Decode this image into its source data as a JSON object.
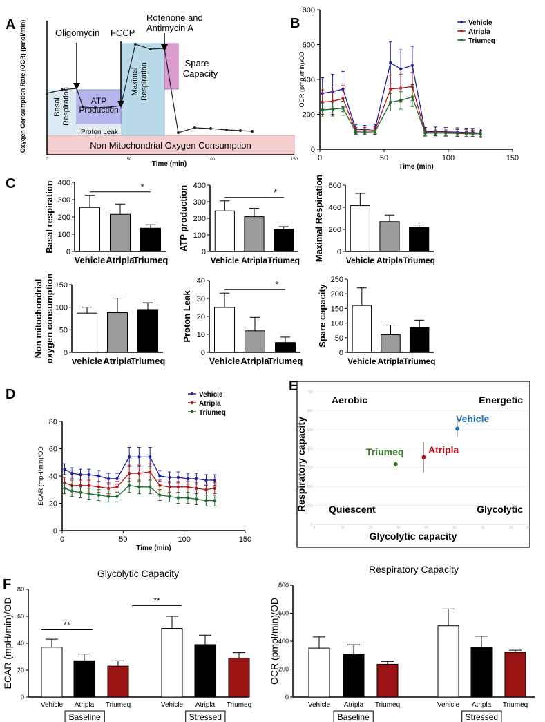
{
  "panel_letters": {
    "a": "A",
    "b": "B",
    "c": "C",
    "d": "D",
    "e": "E",
    "f": "F"
  },
  "colors": {
    "vehicle": "#1f1fa0",
    "atripla": "#b01818",
    "triumeq": "#1e6b2e",
    "gray_bar": "#9b9b9b",
    "dark_red_bar": "#9b1414"
  },
  "panel_a": {
    "ylabel": "Oxygen Consumption Rate (OCR) (pmol/min)",
    "xlabel": "Time (min)",
    "x_ticks": [
      "0",
      "50",
      "100",
      "150"
    ],
    "injections": {
      "oligomycin": "Oligomycin",
      "fccp": "FCCP",
      "rotenone_1": "Rotenone and",
      "rotenone_2": "Antimycin A"
    },
    "regions": {
      "basal_1": "Basal",
      "basal_2": "Respiration",
      "atp_1": "ATP",
      "atp_2": "Production",
      "proton": "Proton Leak",
      "max_1": "Maximal",
      "max_2": "Respiration",
      "spare_1": "Spare",
      "spare_2": "Capacity",
      "non_mito": "Non Mitochondrial Oxygen Consumption"
    }
  },
  "chart_data": [
    {
      "id": "B",
      "type": "line",
      "title": "",
      "xlabel": "Time (min)",
      "ylabel": "OCR (pmol/min)/OD",
      "xlim": [
        0,
        150
      ],
      "ylim": [
        0,
        800
      ],
      "xticks": [
        "0",
        "50",
        "100",
        "150"
      ],
      "yticks": [
        "0",
        "200",
        "400",
        "600",
        "800"
      ],
      "x": [
        2,
        10,
        18,
        28,
        35,
        43,
        55,
        63,
        72,
        82,
        90,
        98,
        107,
        114,
        119,
        125
      ],
      "series": [
        {
          "name": "Vehicle",
          "values": [
            320,
            330,
            345,
            115,
            112,
            118,
            495,
            460,
            480,
            100,
            102,
            100,
            98,
            96,
            95,
            92
          ],
          "errors": [
            90,
            100,
            100,
            25,
            25,
            25,
            120,
            110,
            110,
            25,
            25,
            25,
            25,
            25,
            25,
            25
          ]
        },
        {
          "name": "Atripla",
          "values": [
            270,
            275,
            290,
            105,
            105,
            108,
            345,
            350,
            360,
            96,
            96,
            95,
            93,
            92,
            90,
            88
          ],
          "errors": [
            70,
            75,
            75,
            20,
            20,
            20,
            80,
            80,
            80,
            20,
            20,
            20,
            20,
            20,
            20,
            20
          ]
        },
        {
          "name": "Triumeq",
          "values": [
            225,
            230,
            235,
            100,
            98,
            100,
            270,
            280,
            300,
            92,
            92,
            92,
            90,
            88,
            88,
            88
          ],
          "errors": [
            40,
            40,
            40,
            15,
            15,
            15,
            50,
            50,
            55,
            15,
            15,
            15,
            15,
            15,
            15,
            15
          ]
        }
      ],
      "legend": [
        "Vehicle",
        "Atripla",
        "Triumeq"
      ]
    },
    {
      "id": "C1",
      "type": "bar",
      "ylabel": "Basal respiration",
      "categories": [
        "Vehicle",
        "Atripla",
        "Triumeq"
      ],
      "values": [
        255,
        215,
        135
      ],
      "errors": [
        70,
        60,
        20
      ],
      "ylim": [
        0,
        400
      ],
      "yticks": [
        "0",
        "100",
        "200",
        "300",
        "400"
      ],
      "significance": "*"
    },
    {
      "id": "C2",
      "type": "bar",
      "ylabel": "ATP  production",
      "categories": [
        "Vehicle",
        "Atripla",
        "Triumeq"
      ],
      "values": [
        245,
        210,
        135
      ],
      "errors": [
        60,
        50,
        15
      ],
      "ylim": [
        0,
        400
      ],
      "yticks": [
        "0",
        "100",
        "200",
        "300",
        "400"
      ],
      "significance": "*"
    },
    {
      "id": "C3",
      "type": "bar",
      "ylabel": "Maximal Respiration",
      "categories": [
        "Vehicle",
        "Atripla",
        "Triumeq"
      ],
      "values": [
        415,
        270,
        220
      ],
      "errors": [
        110,
        60,
        20
      ],
      "ylim": [
        0,
        600
      ],
      "yticks": [
        "0",
        "200",
        "400",
        "600"
      ],
      "significance": ""
    },
    {
      "id": "C4",
      "type": "bar",
      "ylabel": "Non mitochondrial oxygen consumption",
      "ylabel_lines": [
        "Non mitochondrial",
        "oxygen consumption"
      ],
      "categories": [
        "vehicle",
        "Atripla",
        "Triumeq"
      ],
      "values": [
        87,
        88,
        95
      ],
      "errors": [
        13,
        32,
        15
      ],
      "ylim": [
        0,
        150
      ],
      "yticks": [
        "0",
        "50",
        "100",
        "150"
      ],
      "significance": ""
    },
    {
      "id": "C5",
      "type": "bar",
      "ylabel": "Proton Leak",
      "categories": [
        "Vehicle",
        "Atripla",
        "Triumeq"
      ],
      "values": [
        25,
        12,
        5.5
      ],
      "errors": [
        8,
        7.5,
        3
      ],
      "ylim": [
        0,
        40
      ],
      "yticks": [
        "0",
        "10",
        "20",
        "30",
        "40"
      ],
      "significance": "*"
    },
    {
      "id": "C6",
      "type": "bar",
      "ylabel": "Spare capacity",
      "categories": [
        "Vehicle",
        "Atripla",
        "Triumeq"
      ],
      "values": [
        160,
        60,
        85
      ],
      "errors": [
        60,
        33,
        25
      ],
      "ylim": [
        0,
        250
      ],
      "yticks": [
        "0",
        "50",
        "100",
        "150",
        "200",
        "250"
      ],
      "significance": ""
    },
    {
      "id": "D",
      "type": "line",
      "xlabel": "Time (min)",
      "ylabel": "ECAR (mpH/min)/OD",
      "xlim": [
        0,
        150
      ],
      "ylim": [
        0,
        80
      ],
      "xticks": [
        "0",
        "50",
        "100",
        "150"
      ],
      "yticks": [
        "0",
        "20",
        "40",
        "60",
        "80"
      ],
      "x": [
        2,
        8,
        15,
        22,
        30,
        38,
        45,
        55,
        63,
        72,
        80,
        88,
        95,
        103,
        110,
        118,
        125
      ],
      "series": [
        {
          "name": "Vehicle",
          "values": [
            45,
            42,
            41,
            41,
            40,
            38,
            38,
            54,
            54,
            54,
            40,
            39,
            39,
            38,
            38,
            37,
            37
          ],
          "errors": [
            4,
            4,
            4,
            4,
            4,
            4,
            4,
            7,
            7,
            7,
            4,
            4,
            4,
            4,
            4,
            4,
            4
          ]
        },
        {
          "name": "Atripla",
          "values": [
            35,
            33,
            33,
            33,
            32,
            31,
            32,
            42,
            42,
            43,
            33,
            32,
            32,
            32,
            31,
            30,
            31
          ],
          "errors": [
            4,
            4,
            4,
            4,
            4,
            4,
            4,
            6,
            6,
            6,
            4,
            4,
            4,
            4,
            4,
            4,
            4
          ]
        },
        {
          "name": "Triumeq",
          "values": [
            31,
            29,
            28,
            27,
            26,
            25,
            25,
            33,
            32,
            32,
            26,
            25,
            24,
            24,
            23,
            22,
            22
          ],
          "errors": [
            4,
            4,
            4,
            4,
            4,
            4,
            4,
            5,
            5,
            5,
            4,
            4,
            4,
            4,
            4,
            4,
            4
          ]
        }
      ],
      "legend": [
        "Vehicle",
        "Atripla",
        "Triumeq"
      ]
    },
    {
      "id": "E",
      "type": "scatter",
      "xlabel": "Glycolytic capacity",
      "ylabel": "Respiratory capacity",
      "xlim": [
        0,
        80
      ],
      "ylim": [
        0,
        700
      ],
      "xticks": [
        "0",
        "10",
        "20",
        "30",
        "40",
        "50",
        "60",
        "70",
        "80"
      ],
      "yticks": [
        "0",
        "100",
        "200",
        "300",
        "400",
        "500",
        "600",
        "700"
      ],
      "quadrants": {
        "top_left": "Aerobic",
        "top_right": "Energetic",
        "bottom_left": "Quiescent",
        "bottom_right": "Glycolytic"
      },
      "points": [
        {
          "name": "Vehicle",
          "x": 51,
          "y": 505,
          "yerr": 40
        },
        {
          "name": "Atripla",
          "x": 39,
          "y": 355,
          "yerr": 80
        },
        {
          "name": "Triumeq",
          "x": 29,
          "y": 318,
          "yerr": 15
        }
      ]
    },
    {
      "id": "F1",
      "type": "bar",
      "title": "Glycolytic Capacity",
      "ylabel": "ECAR (mpH/min)/OD",
      "ylim": [
        0,
        80
      ],
      "yticks": [
        "0",
        "20",
        "40",
        "60",
        "80"
      ],
      "categories": [
        "Vehicle",
        "Atripla",
        "Triumeq",
        "Vehicle",
        "Atripla",
        "Triumeq"
      ],
      "groups": [
        "Baseline",
        "Stressed"
      ],
      "values": [
        37,
        27,
        23,
        51,
        39,
        29
      ],
      "errors": [
        6,
        5,
        4,
        9,
        7,
        4
      ],
      "significance": [
        "**",
        "**"
      ]
    },
    {
      "id": "F2",
      "type": "bar",
      "title": "Respiratory Capacity",
      "ylabel": "OCR (pmol/min)/OD",
      "ylim": [
        0,
        800
      ],
      "yticks": [
        "0",
        "200",
        "400",
        "600",
        "800"
      ],
      "categories": [
        "Vehicle",
        "Atripla",
        "Triumeq",
        "Vehicle",
        "Atripla",
        "Triumeq"
      ],
      "groups": [
        "Baseline",
        "Stressed"
      ],
      "values": [
        350,
        305,
        235,
        510,
        355,
        320
      ],
      "errors": [
        80,
        70,
        20,
        120,
        80,
        15
      ],
      "significance": []
    }
  ]
}
